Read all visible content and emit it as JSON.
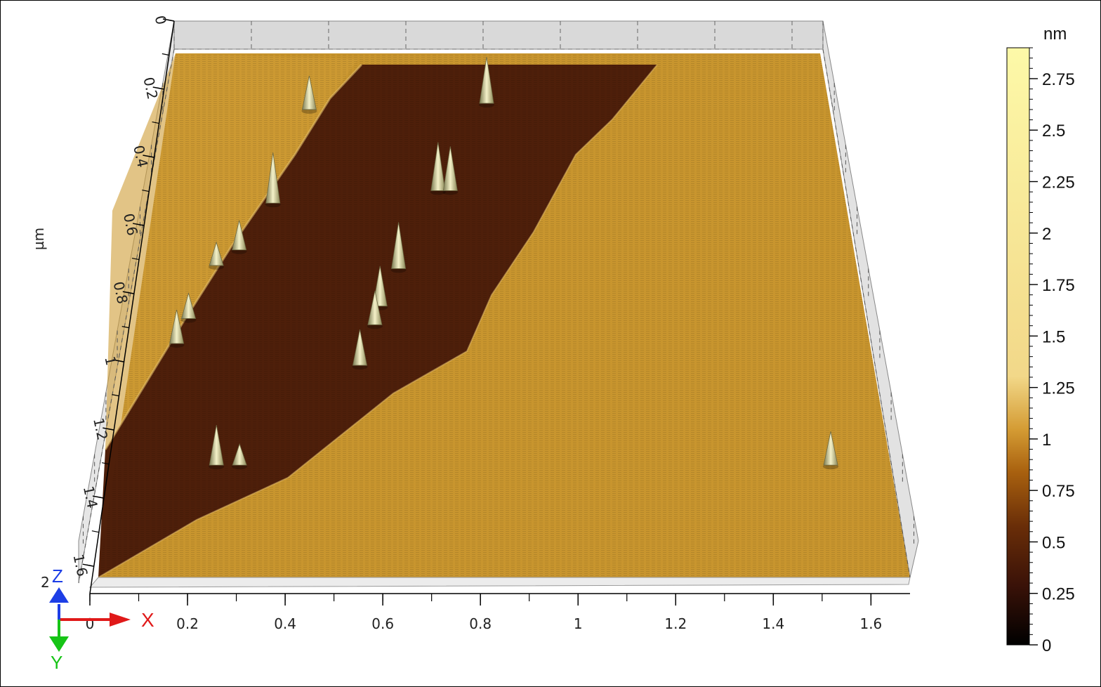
{
  "chart_data": {
    "type": "heatmap",
    "subtype": "3d-afm-surface",
    "title": "",
    "xlabel": "µm",
    "ylabel": "µm",
    "colorbar_label": "nm",
    "x_ticks": [
      "0",
      "0.2",
      "0.4",
      "0.6",
      "0.8",
      "1",
      "1.2",
      "1.4",
      "1.6"
    ],
    "y_ticks": [
      "0",
      "0.2",
      "0.4",
      "0.6",
      "0.8",
      "1",
      "1.2",
      "1.4",
      "1.6"
    ],
    "z_tick": "2",
    "xlim": [
      0,
      1.68
    ],
    "ylim": [
      0,
      1.68
    ],
    "zlim": [
      0,
      2.9
    ],
    "colorbar_ticks": [
      0,
      0.25,
      0.5,
      0.75,
      1,
      1.25,
      1.5,
      1.75,
      2,
      2.25,
      2.5,
      2.75
    ],
    "colorbar_tick_labels": [
      "0",
      "0.25",
      "0.5",
      "0.75",
      "1",
      "1.25",
      "1.5",
      "1.75",
      "2",
      "2.25",
      "2.5",
      "2.75"
    ],
    "colormap": [
      "#000000",
      "#3a1208",
      "#6a2e08",
      "#a9610f",
      "#d49b33",
      "#f2d889",
      "#fdf9a8"
    ],
    "regions": [
      {
        "name": "upper terrace",
        "height_nm": 0.95,
        "color": "#c8952e"
      },
      {
        "name": "lower terrace",
        "height_nm": 0.35,
        "color": "#4a1c08"
      }
    ],
    "peaks": [
      {
        "x": 0.36,
        "y": 0.18,
        "height": 1.6
      },
      {
        "x": 0.81,
        "y": 0.16,
        "height": 2.2
      },
      {
        "x": 0.29,
        "y": 0.48,
        "height": 2.4
      },
      {
        "x": 0.22,
        "y": 0.63,
        "height": 1.4
      },
      {
        "x": 0.17,
        "y": 0.68,
        "height": 1.1
      },
      {
        "x": 0.12,
        "y": 0.85,
        "height": 1.2
      },
      {
        "x": 0.1,
        "y": 0.93,
        "height": 1.6
      },
      {
        "x": 0.69,
        "y": 0.44,
        "height": 2.3
      },
      {
        "x": 0.72,
        "y": 0.44,
        "height": 2.1
      },
      {
        "x": 0.6,
        "y": 0.69,
        "height": 2.2
      },
      {
        "x": 0.56,
        "y": 0.81,
        "height": 1.9
      },
      {
        "x": 0.55,
        "y": 0.87,
        "height": 1.6
      },
      {
        "x": 0.52,
        "y": 1.0,
        "height": 1.7
      },
      {
        "x": 0.22,
        "y": 1.32,
        "height": 1.9
      },
      {
        "x": 0.27,
        "y": 1.32,
        "height": 1.0
      },
      {
        "x": 1.55,
        "y": 1.32,
        "height": 1.6
      }
    ]
  },
  "axes_indicator": {
    "x": "X",
    "y": "Y",
    "z": "Z"
  },
  "colors": {
    "x_axis": "#e01919",
    "y_axis": "#16c416",
    "z_axis": "#1d3ee6"
  }
}
